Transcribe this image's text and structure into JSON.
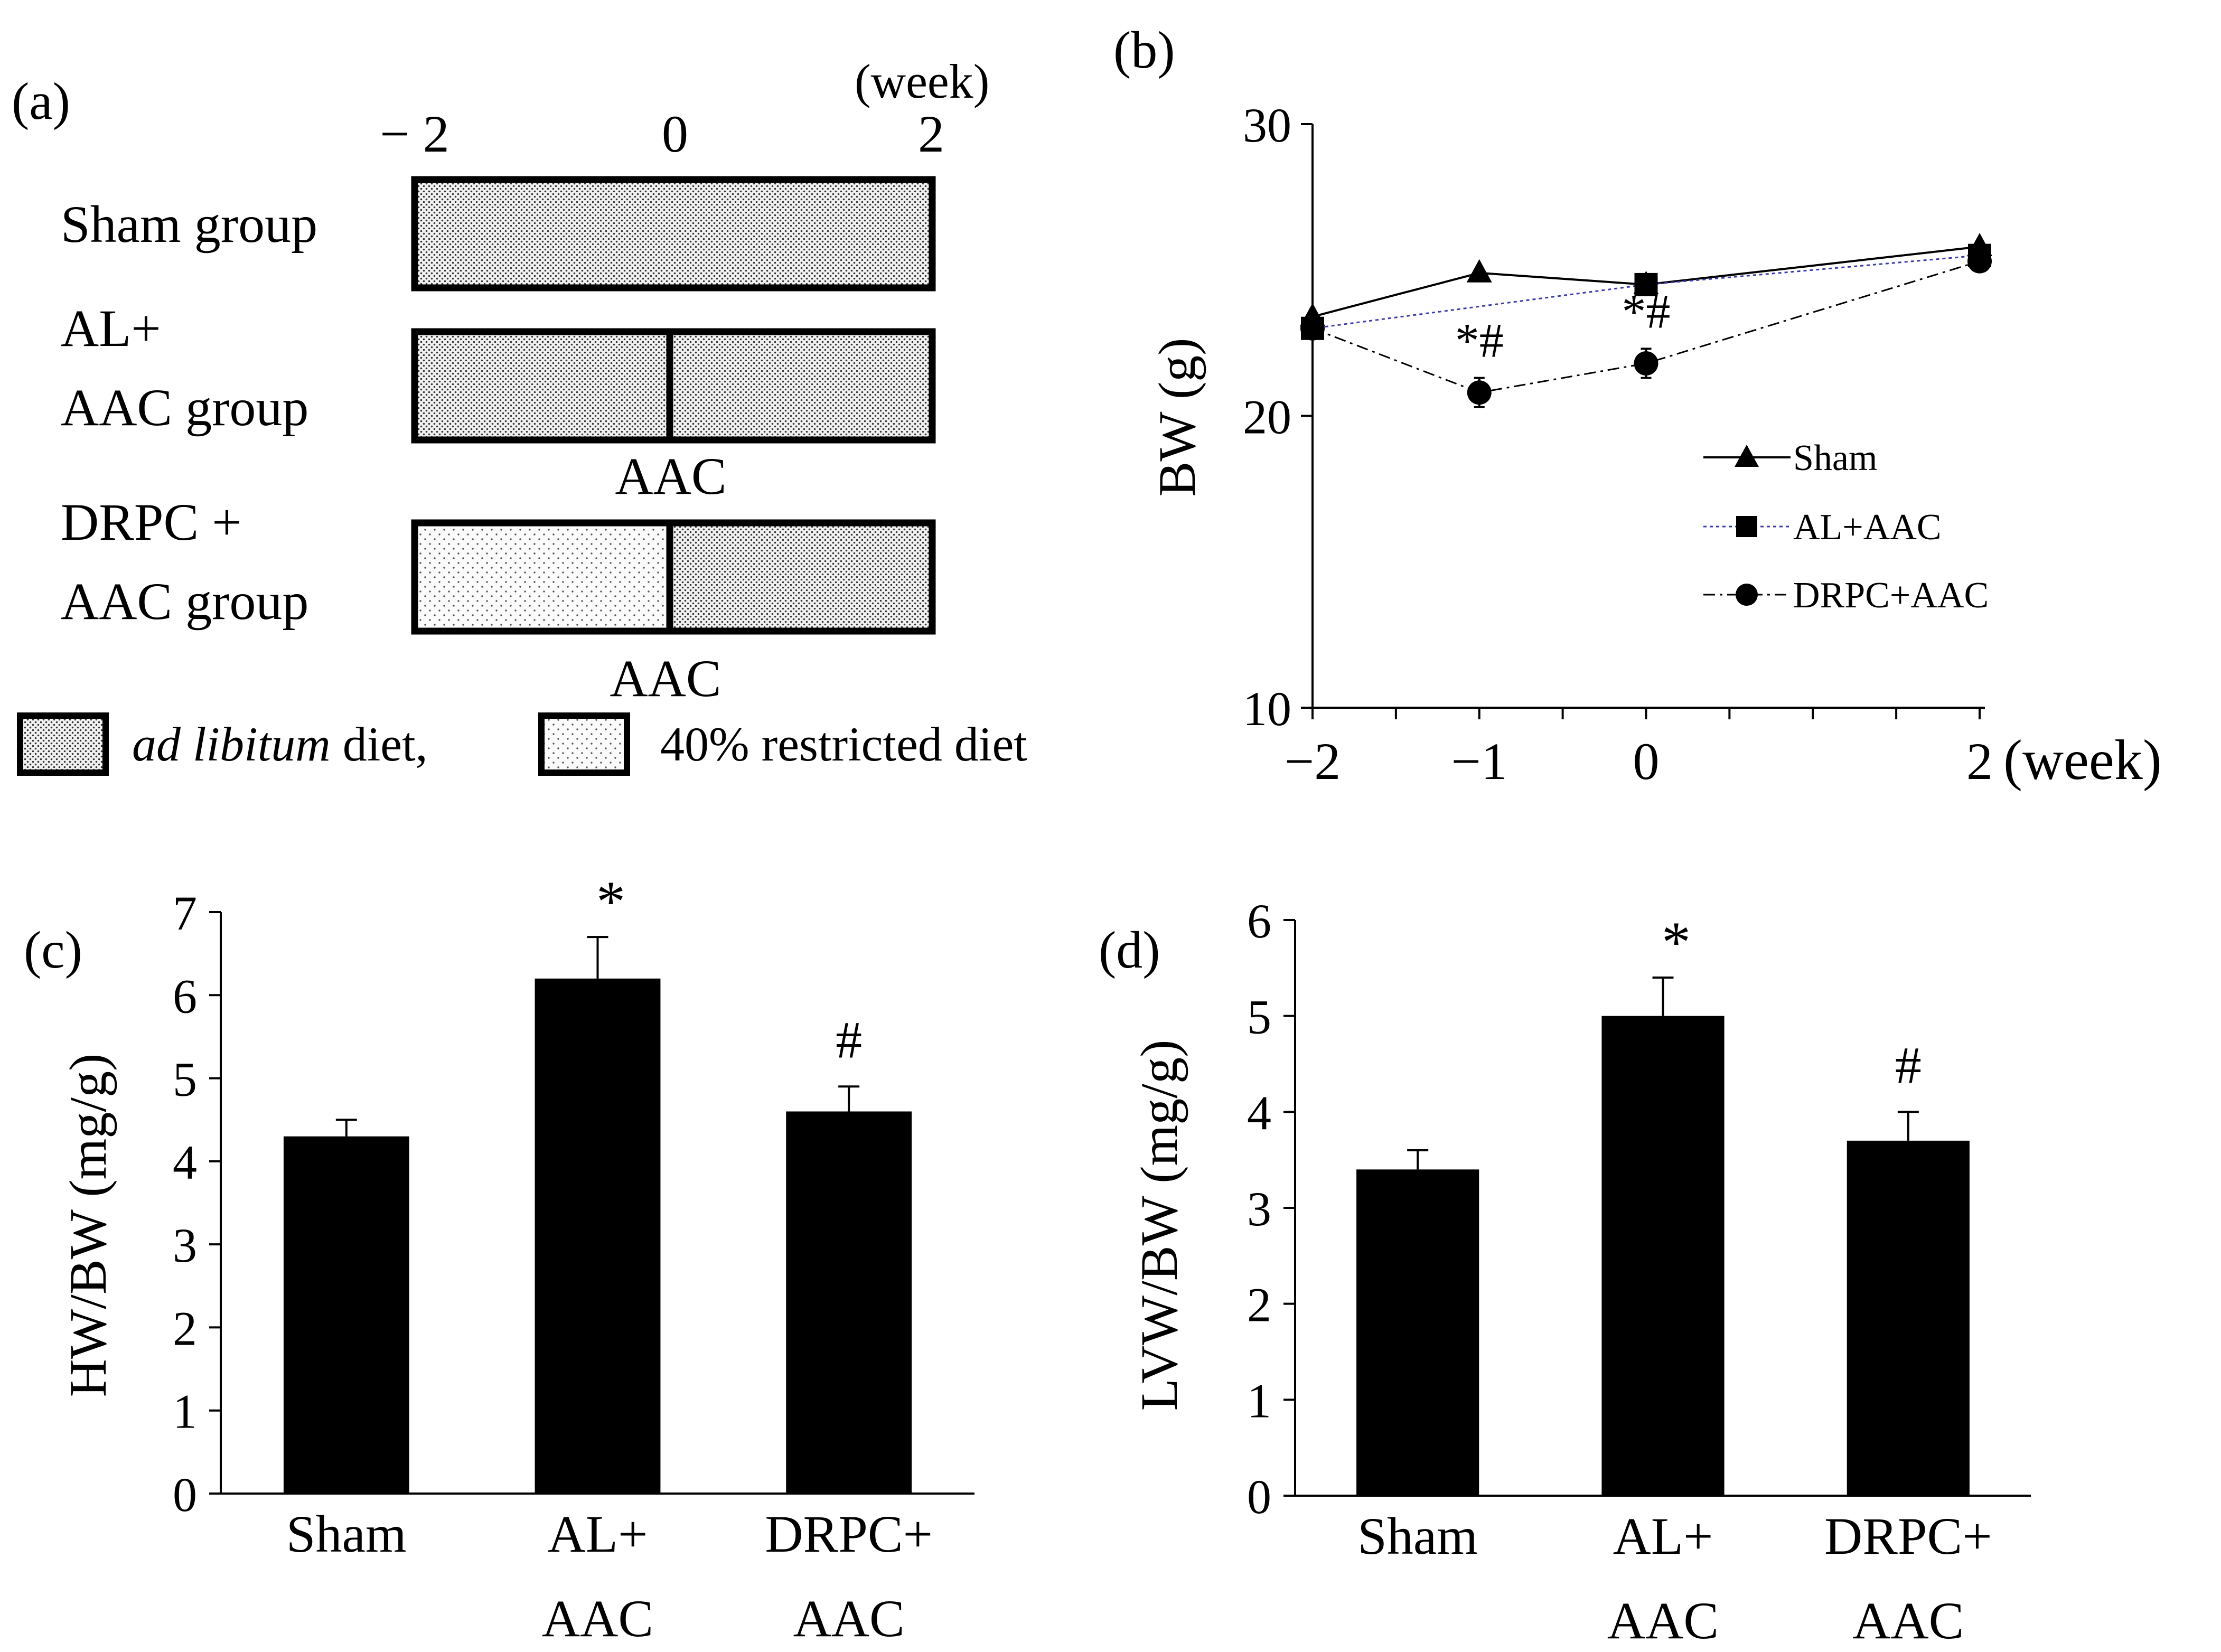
{
  "colors": {
    "ink": "#000000",
    "al_line": "#3b3bb0",
    "restricted_dot": "#555555",
    "adlib_dot": "#333333"
  },
  "chart_data": [
    {
      "panel": "(a)",
      "type": "diagram",
      "unit_label": "(week)",
      "ticks": [
        "− 2",
        "0",
        "2"
      ],
      "groups": [
        {
          "name_lines": [
            "Sham group"
          ],
          "segments": [
            {
              "from": -2,
              "to": 2,
              "diet": "ad_libitum"
            }
          ],
          "note": ""
        },
        {
          "name_lines": [
            "AL+",
            "AAC group"
          ],
          "segments": [
            {
              "from": -2,
              "to": 0,
              "diet": "ad_libitum"
            },
            {
              "from": 0,
              "to": 2,
              "diet": "ad_libitum"
            }
          ],
          "note": "AAC"
        },
        {
          "name_lines": [
            "DRPC +",
            "AAC group"
          ],
          "segments": [
            {
              "from": -2,
              "to": 0,
              "diet": "restricted"
            },
            {
              "from": 0,
              "to": 2,
              "diet": "ad_libitum"
            }
          ],
          "note": "AAC"
        }
      ],
      "legend": {
        "adlib_italic": "ad libitum",
        "adlib_rest": " diet,",
        "restricted": "40% restricted diet"
      }
    },
    {
      "panel": "(b)",
      "type": "line",
      "ylabel": "BW (g)",
      "xunit": "(week)",
      "ylim": [
        10,
        30
      ],
      "yticks": [
        10,
        20,
        30
      ],
      "xlim": [
        -2,
        2
      ],
      "xtick_labels": [
        {
          "x": -2,
          "label": "−2"
        },
        {
          "x": -1,
          "label": "−1"
        },
        {
          "x": 0,
          "label": "0"
        },
        {
          "x": 2,
          "label": "2"
        }
      ],
      "x": [
        -2,
        -1,
        0,
        2
      ],
      "series": [
        {
          "name": "Sham",
          "marker": "triangle",
          "style": "solid",
          "values": [
            23.4,
            24.9,
            24.5,
            25.8
          ]
        },
        {
          "name": "AL+AAC",
          "marker": "square",
          "style": "dotted",
          "values": [
            23.0,
            null,
            24.5,
            25.5
          ]
        },
        {
          "name": "DRPC+AAC",
          "marker": "circle",
          "style": "dashdot",
          "values": [
            23.0,
            20.8,
            21.8,
            25.3
          ],
          "errors": [
            0.3,
            0.5,
            0.5,
            0.3
          ]
        }
      ],
      "annotations": [
        {
          "x": -1,
          "y": 21.3,
          "text": "*#"
        },
        {
          "x": 0,
          "y": 22.3,
          "text": "*#"
        }
      ]
    },
    {
      "panel": "(c)",
      "type": "bar",
      "ylabel": "HW/BW (mg/g)",
      "ylim": [
        0,
        7
      ],
      "yticks": [
        0,
        1,
        2,
        3,
        4,
        5,
        6,
        7
      ],
      "categories": [
        [
          "Sham"
        ],
        [
          "AL+",
          "AAC"
        ],
        [
          "DRPC+",
          "AAC"
        ]
      ],
      "values": [
        4.3,
        6.2,
        4.6
      ],
      "errors": [
        0.2,
        0.5,
        0.3
      ],
      "marks": [
        "",
        "*",
        "#"
      ]
    },
    {
      "panel": "(d)",
      "type": "bar",
      "ylabel": "LVW/BW (mg/g)",
      "ylim": [
        0,
        6
      ],
      "yticks": [
        0,
        1,
        2,
        3,
        4,
        5,
        6
      ],
      "categories": [
        [
          "Sham"
        ],
        [
          "AL+",
          "AAC"
        ],
        [
          "DRPC+",
          "AAC"
        ]
      ],
      "values": [
        3.4,
        5.0,
        3.7
      ],
      "errors": [
        0.2,
        0.4,
        0.3
      ],
      "marks": [
        "",
        "*",
        "#"
      ]
    }
  ]
}
